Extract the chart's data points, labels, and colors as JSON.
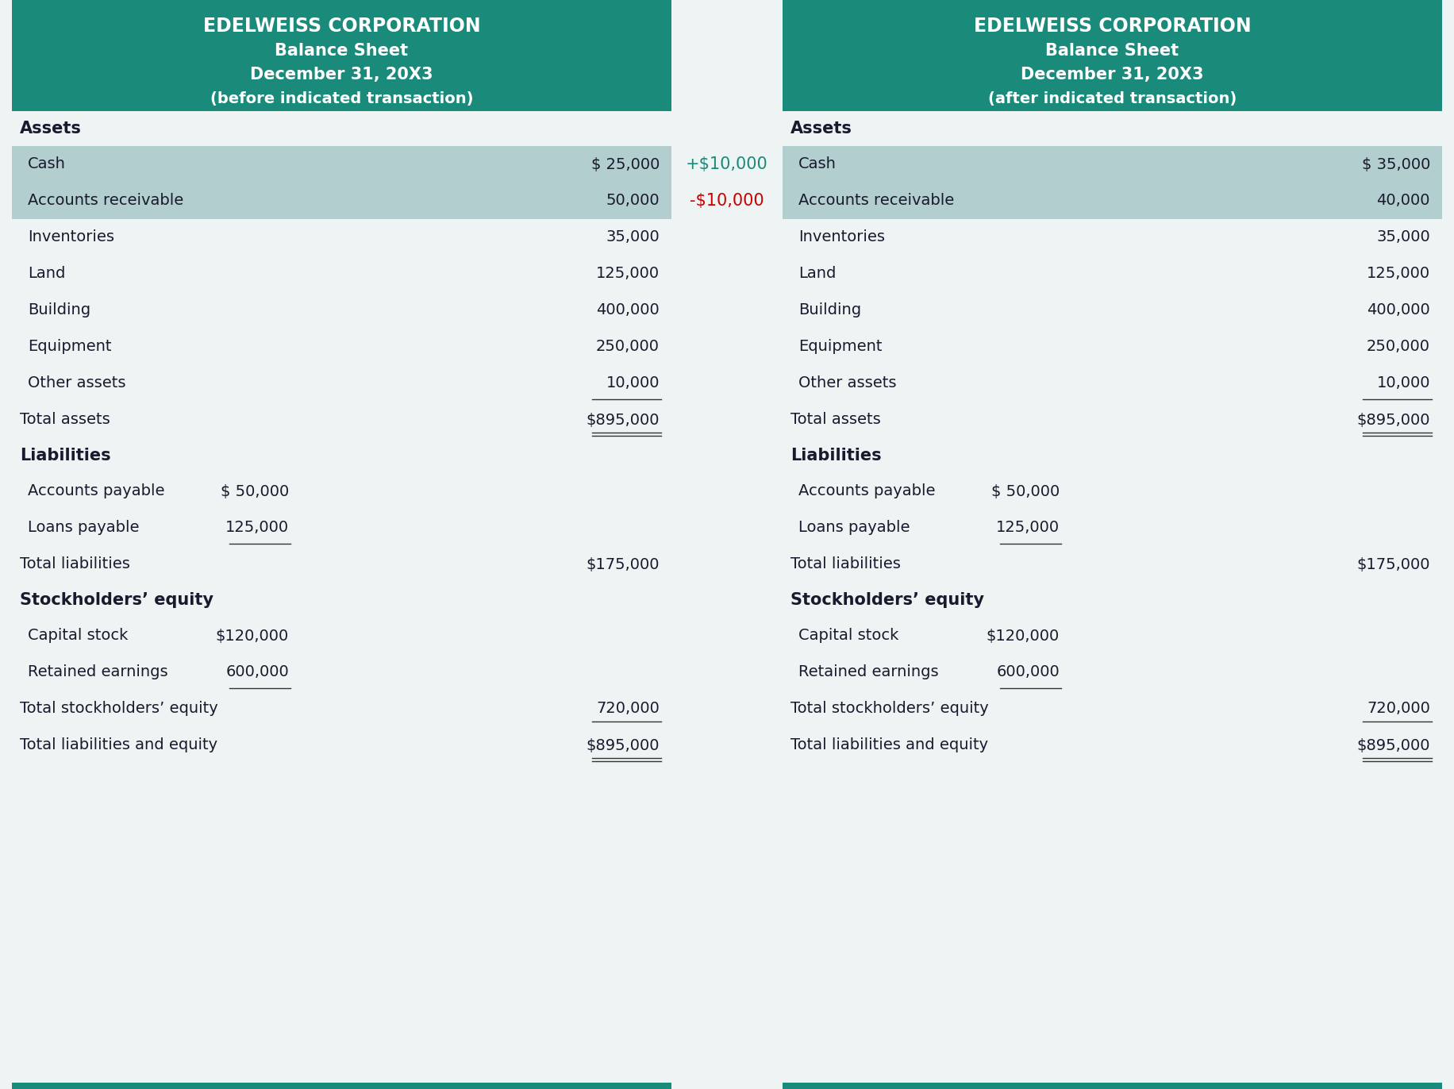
{
  "header_bg": "#1a8a7a",
  "header_text_color": "#ffffff",
  "body_bg": "#eef3f3",
  "highlight_bg": "#b2cece",
  "dark_text": "#1a1a2e",
  "teal_bottom": "#1a8a7a",
  "left_title": [
    "EDELWEISS CORPORATION",
    "Balance Sheet",
    "December 31, 20X3",
    "(before indicated transaction)"
  ],
  "right_title": [
    "EDELWEISS CORPORATION",
    "Balance Sheet",
    "December 31, 20X3",
    "(after indicated transaction)"
  ],
  "left_data": {
    "assets_header": "Assets",
    "asset_items": [
      {
        "label": "Cash",
        "col1": "$ 25,000",
        "highlighted": true
      },
      {
        "label": "Accounts receivable",
        "col1": "50,000",
        "highlighted": true
      },
      {
        "label": "Inventories",
        "col1": "35,000",
        "highlighted": false
      },
      {
        "label": "Land",
        "col1": "125,000",
        "highlighted": false
      },
      {
        "label": "Building",
        "col1": "400,000",
        "highlighted": false
      },
      {
        "label": "Equipment",
        "col1": "250,000",
        "highlighted": false
      },
      {
        "label": "Other assets",
        "col1": "10,000",
        "highlighted": false
      }
    ],
    "total_assets_label": "Total assets",
    "total_assets_value": "$895,000",
    "liabilities_header": "Liabilities",
    "liability_items": [
      {
        "label": "Accounts payable",
        "col1": "$ 50,000"
      },
      {
        "label": "Loans payable",
        "col1": "125,000"
      }
    ],
    "total_liabilities_label": "Total liabilities",
    "total_liabilities_value": "$175,000",
    "equity_header": "Stockholders’ equity",
    "equity_items": [
      {
        "label": "Capital stock",
        "col1": "$120,000"
      },
      {
        "label": "Retained earnings",
        "col1": "600,000"
      }
    ],
    "total_equity_label": "Total stockholders’ equity",
    "total_equity_value": "720,000",
    "total_liab_equity_label": "Total liabilities and equity",
    "total_liab_equity_value": "$895,000"
  },
  "right_data": {
    "assets_header": "Assets",
    "asset_items": [
      {
        "label": "Cash",
        "col1": "$ 35,000",
        "highlighted": true
      },
      {
        "label": "Accounts receivable",
        "col1": "40,000",
        "highlighted": true
      },
      {
        "label": "Inventories",
        "col1": "35,000",
        "highlighted": false
      },
      {
        "label": "Land",
        "col1": "125,000",
        "highlighted": false
      },
      {
        "label": "Building",
        "col1": "400,000",
        "highlighted": false
      },
      {
        "label": "Equipment",
        "col1": "250,000",
        "highlighted": false
      },
      {
        "label": "Other assets",
        "col1": "10,000",
        "highlighted": false
      }
    ],
    "total_assets_label": "Total assets",
    "total_assets_value": "$895,000",
    "liabilities_header": "Liabilities",
    "liability_items": [
      {
        "label": "Accounts payable",
        "col1": "$ 50,000"
      },
      {
        "label": "Loans payable",
        "col1": "125,000"
      }
    ],
    "total_liabilities_label": "Total liabilities",
    "total_liabilities_value": "$175,000",
    "equity_header": "Stockholders’ equity",
    "equity_items": [
      {
        "label": "Capital stock",
        "col1": "$120,000"
      },
      {
        "label": "Retained earnings",
        "col1": "600,000"
      }
    ],
    "total_equity_label": "Total stockholders’ equity",
    "total_equity_value": "720,000",
    "total_liab_equity_label": "Total liabilities and equity",
    "total_liab_equity_value": "$895,000"
  },
  "middle_annotations": [
    {
      "text": "+$10,000",
      "color": "#1a8a7a"
    },
    {
      "text": "-$10,000",
      "color": "#cc0000"
    }
  ],
  "fig_width": 18.32,
  "fig_height": 13.72,
  "dpi": 100
}
